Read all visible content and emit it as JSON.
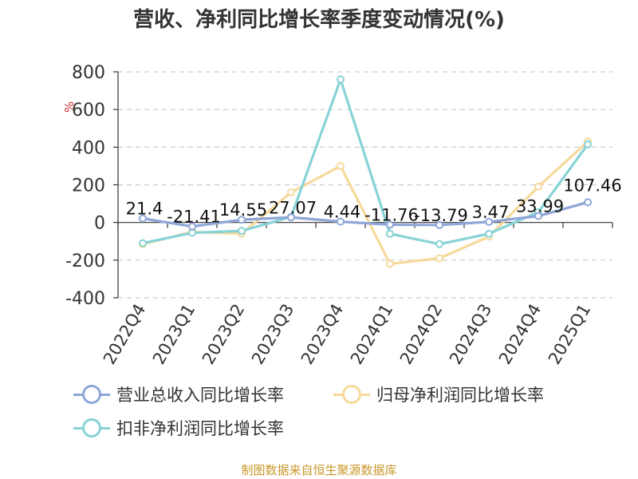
{
  "chart_data": {
    "type": "line",
    "title": "营收、净利同比增长率季度变动情况(%)",
    "ylabel": "%",
    "xlabel": "",
    "categories": [
      "2022Q4",
      "2023Q1",
      "2023Q2",
      "2023Q3",
      "2023Q4",
      "2024Q1",
      "2024Q2",
      "2024Q3",
      "2024Q4",
      "2025Q1"
    ],
    "ylim": [
      -400,
      800
    ],
    "yticks": [
      800,
      600,
      400,
      200,
      0,
      -200,
      -400
    ],
    "grid": true,
    "legend_placement": "bottom",
    "series": [
      {
        "name": "营业总收入同比增长率",
        "color": "#8ea6d8",
        "values": [
          21.4,
          -21.41,
          14.55,
          27.07,
          4.44,
          -11.76,
          -13.79,
          3.47,
          33.99,
          107.46
        ],
        "labels": [
          "21.4",
          "-21.41",
          "14.55",
          "27.07",
          "4.44",
          "-11.76",
          "-13.79",
          "3.47",
          "33.99",
          "107.46"
        ]
      },
      {
        "name": "归母净利润同比增长率",
        "color": "#f6d99b",
        "values": [
          -115,
          -50,
          -60,
          160,
          300,
          -220,
          -190,
          -75,
          190,
          430
        ]
      },
      {
        "name": "扣非净利润同比增长率",
        "color": "#88d3d6",
        "values": [
          -110,
          -55,
          -45,
          30,
          760,
          -60,
          -115,
          -60,
          55,
          415
        ]
      }
    ]
  },
  "footer": {
    "source": "制图数据来自恒生聚源数据库"
  }
}
